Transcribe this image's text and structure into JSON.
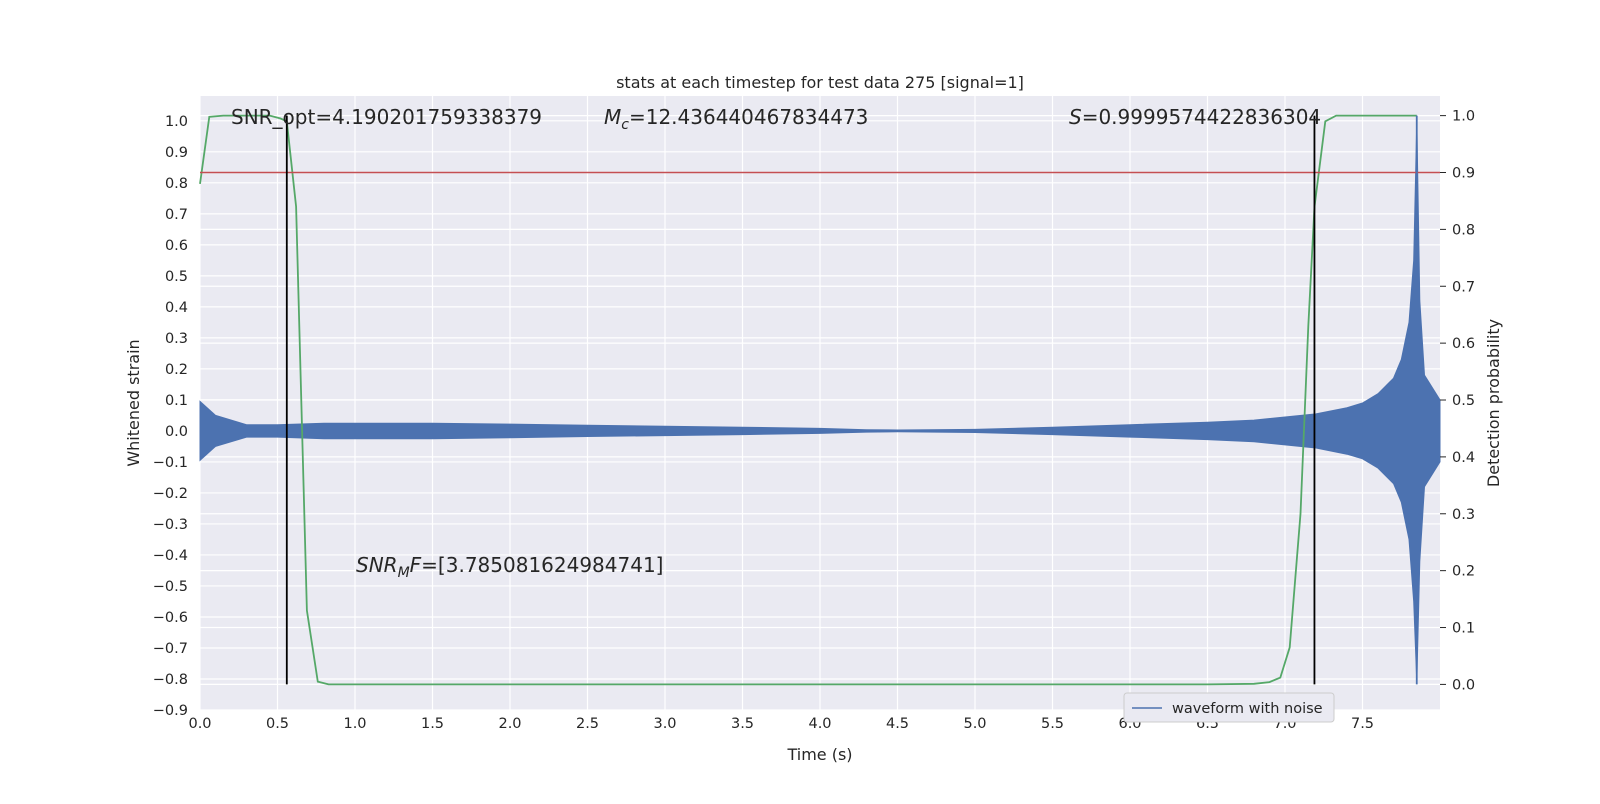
{
  "chart_data": {
    "type": "line",
    "title": "stats at each timestep for test data 275 [signal=1]",
    "xlabel": "Time (s)",
    "ylabel": "Whitened strain",
    "y2label": "Detection probability",
    "xlim": [
      0.0,
      8.0
    ],
    "ylim": [
      -0.9,
      1.08
    ],
    "y2lim": [
      -0.045,
      1.0345
    ],
    "xticks": [
      "0.0",
      "0.5",
      "1.0",
      "1.5",
      "2.0",
      "2.5",
      "3.0",
      "3.5",
      "4.0",
      "4.5",
      "5.0",
      "5.5",
      "6.0",
      "6.5",
      "7.0",
      "7.5"
    ],
    "yticks": [
      "1.0",
      "0.9",
      "0.8",
      "0.7",
      "0.6",
      "0.5",
      "0.4",
      "0.3",
      "0.2",
      "0.1",
      "0.0",
      "−0.1",
      "−0.2",
      "−0.3",
      "−0.4",
      "−0.5",
      "−0.6",
      "−0.7",
      "−0.8",
      "−0.9"
    ],
    "y2ticks": [
      "1.0",
      "0.9",
      "0.8",
      "0.7",
      "0.6",
      "0.5",
      "0.4",
      "0.3",
      "0.2",
      "0.1",
      "0.0"
    ],
    "grid": true,
    "legend": {
      "placement": "lower-right",
      "entries": [
        "waveform with noise"
      ]
    },
    "annotations": {
      "snr_opt": "SNR_opt=4.190201759338379",
      "mc_symbol": "M",
      "mc_sub": "c",
      "mc_value": "=12.436440467834473",
      "s_symbol": "S",
      "s_value": "=0.9999574422836304",
      "snrmf_symbol": "SNR",
      "snrmf_sub": "M",
      "snrmf_symbol2": "F",
      "snrmf_value": "=[3.785081624984741]"
    },
    "threshold": {
      "axis": "y2",
      "value": 0.9
    },
    "vlines": [
      0.56,
      7.19,
      7.85
    ],
    "series": [
      {
        "name": "waveform with noise",
        "axis": "y",
        "kind": "envelope",
        "x": [
          0.0,
          0.1,
          0.3,
          0.5,
          0.8,
          1.0,
          1.5,
          2.0,
          2.5,
          3.0,
          3.5,
          4.0,
          4.3,
          4.5,
          5.0,
          5.5,
          6.0,
          6.5,
          6.8,
          7.0,
          7.2,
          7.4,
          7.5,
          7.6,
          7.7,
          7.75,
          7.8,
          7.83,
          7.85,
          7.87,
          7.9,
          8.0
        ],
        "upper": [
          0.095,
          0.05,
          0.02,
          0.02,
          0.025,
          0.025,
          0.025,
          0.022,
          0.018,
          0.015,
          0.012,
          0.008,
          0.004,
          0.003,
          0.005,
          0.012,
          0.02,
          0.028,
          0.035,
          0.045,
          0.055,
          0.075,
          0.09,
          0.12,
          0.17,
          0.23,
          0.35,
          0.55,
          1.0,
          0.42,
          0.18,
          0.1
        ],
        "lower": [
          -0.095,
          -0.05,
          -0.02,
          -0.02,
          -0.025,
          -0.025,
          -0.025,
          -0.022,
          -0.018,
          -0.015,
          -0.012,
          -0.008,
          -0.004,
          -0.003,
          -0.005,
          -0.012,
          -0.02,
          -0.028,
          -0.035,
          -0.045,
          -0.055,
          -0.075,
          -0.09,
          -0.12,
          -0.17,
          -0.23,
          -0.35,
          -0.55,
          -0.81,
          -0.42,
          -0.18,
          -0.1
        ],
        "color": "#4c72b0"
      },
      {
        "name": "",
        "axis": "y2",
        "kind": "line",
        "x": [
          0.0,
          0.06,
          0.15,
          0.3,
          0.45,
          0.52,
          0.56,
          0.62,
          0.69,
          0.76,
          0.83,
          1.0,
          3.0,
          5.0,
          6.5,
          6.8,
          6.9,
          6.97,
          7.03,
          7.1,
          7.15,
          7.19,
          7.26,
          7.33,
          7.5,
          7.85
        ],
        "values": [
          0.88,
          0.998,
          1.0,
          1.0,
          1.0,
          0.995,
          0.99,
          0.84,
          0.13,
          0.005,
          0.0,
          0.0,
          0.0,
          0.0,
          0.0,
          0.001,
          0.004,
          0.012,
          0.065,
          0.3,
          0.63,
          0.84,
          0.99,
          1.0,
          1.0,
          1.0
        ],
        "color": "#55a868"
      }
    ],
    "colors": {
      "background": "#eaeaf2",
      "grid": "#ffffff",
      "threshold": "#c44e52",
      "vline": "#000000"
    }
  }
}
